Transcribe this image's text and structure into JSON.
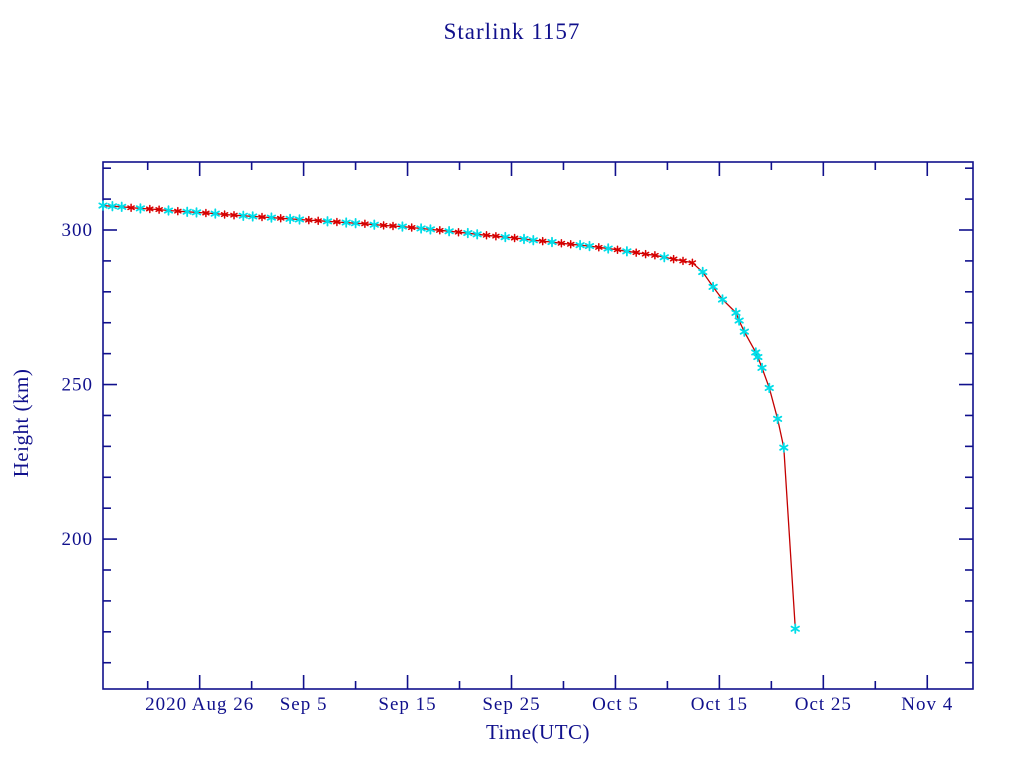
{
  "page": {
    "background": "#ffffff"
  },
  "chart_data": {
    "type": "line",
    "title": "Starlink 1157",
    "xlabel": "Time(UTC)",
    "ylabel": "Height (km)",
    "grid": false,
    "legend": null,
    "colors": {
      "frame": "#10108c",
      "text": "#10108c",
      "line": "#c40000",
      "marker_cyan": "#00dde8",
      "marker_red": "#d80000"
    },
    "x_axis": {
      "unit": "days relative to 2020 Aug 26",
      "range": [
        -9.3,
        74.4
      ],
      "major_ticks": [
        {
          "pos": 0,
          "label": "2020 Aug 26"
        },
        {
          "pos": 10,
          "label": "Sep 5"
        },
        {
          "pos": 20,
          "label": "Sep 15"
        },
        {
          "pos": 30,
          "label": "Sep 25"
        },
        {
          "pos": 40,
          "label": "Oct 5"
        },
        {
          "pos": 50,
          "label": "Oct 15"
        },
        {
          "pos": 60,
          "label": "Oct 25"
        },
        {
          "pos": 70,
          "label": "Nov 4"
        }
      ],
      "minor_tick_positions": [
        -5,
        5,
        15,
        25,
        35,
        45,
        55,
        65
      ]
    },
    "y_axis": {
      "unit": "km",
      "range": [
        151.5,
        322
      ],
      "major_ticks": [
        {
          "pos": 200,
          "label": "200"
        },
        {
          "pos": 250,
          "label": "250"
        },
        {
          "pos": 300,
          "label": "300"
        }
      ],
      "minor_tick_positions": [
        160,
        170,
        180,
        190,
        210,
        220,
        230,
        240,
        260,
        270,
        280,
        290,
        310,
        320
      ]
    },
    "series": [
      {
        "name": "Starlink 1157 height",
        "marker": "asterisk",
        "points": [
          [
            -9.3,
            307.9,
            "c"
          ],
          [
            -8.4,
            307.7,
            "c"
          ],
          [
            -7.5,
            307.5,
            "c"
          ],
          [
            -6.6,
            307.2,
            "r"
          ],
          [
            -5.7,
            307.0,
            "c"
          ],
          [
            -4.8,
            306.8,
            "r"
          ],
          [
            -3.9,
            306.6,
            "r"
          ],
          [
            -3.0,
            306.3,
            "c"
          ],
          [
            -2.1,
            306.1,
            "r"
          ],
          [
            -1.2,
            305.9,
            "c"
          ],
          [
            -0.3,
            305.7,
            "c"
          ],
          [
            0.6,
            305.5,
            "r"
          ],
          [
            1.5,
            305.3,
            "c"
          ],
          [
            2.4,
            305.0,
            "r"
          ],
          [
            3.3,
            304.8,
            "r"
          ],
          [
            4.2,
            304.6,
            "c"
          ],
          [
            5.1,
            304.4,
            "c"
          ],
          [
            6.0,
            304.2,
            "r"
          ],
          [
            6.9,
            304.0,
            "c"
          ],
          [
            7.8,
            303.8,
            "r"
          ],
          [
            8.7,
            303.6,
            "c"
          ],
          [
            9.6,
            303.4,
            "c"
          ],
          [
            10.5,
            303.2,
            "r"
          ],
          [
            11.4,
            303.0,
            "r"
          ],
          [
            12.3,
            302.8,
            "c"
          ],
          [
            13.2,
            302.6,
            "r"
          ],
          [
            14.1,
            302.4,
            "c"
          ],
          [
            15.0,
            302.2,
            "c"
          ],
          [
            15.9,
            302.0,
            "r"
          ],
          [
            16.8,
            301.7,
            "c"
          ],
          [
            17.7,
            301.5,
            "r"
          ],
          [
            18.6,
            301.3,
            "r"
          ],
          [
            19.5,
            301.1,
            "c"
          ],
          [
            20.4,
            300.8,
            "r"
          ],
          [
            21.3,
            300.5,
            "c"
          ],
          [
            22.2,
            300.2,
            "c"
          ],
          [
            23.1,
            299.9,
            "r"
          ],
          [
            24.0,
            299.6,
            "c"
          ],
          [
            24.9,
            299.3,
            "r"
          ],
          [
            25.8,
            299.0,
            "c"
          ],
          [
            26.7,
            298.6,
            "c"
          ],
          [
            27.6,
            298.3,
            "r"
          ],
          [
            28.5,
            298.0,
            "r"
          ],
          [
            29.4,
            297.7,
            "c"
          ],
          [
            30.3,
            297.4,
            "r"
          ],
          [
            31.2,
            297.1,
            "c"
          ],
          [
            32.1,
            296.7,
            "c"
          ],
          [
            33.0,
            296.4,
            "r"
          ],
          [
            33.9,
            296.1,
            "c"
          ],
          [
            34.8,
            295.7,
            "r"
          ],
          [
            35.7,
            295.4,
            "r"
          ],
          [
            36.6,
            295.1,
            "c"
          ],
          [
            37.5,
            294.8,
            "c"
          ],
          [
            38.4,
            294.4,
            "r"
          ],
          [
            39.3,
            294.0,
            "c"
          ],
          [
            40.2,
            293.6,
            "r"
          ],
          [
            41.1,
            293.1,
            "c"
          ],
          [
            42.0,
            292.7,
            "r"
          ],
          [
            42.9,
            292.2,
            "r"
          ],
          [
            43.8,
            291.8,
            "r"
          ],
          [
            44.7,
            291.2,
            "c"
          ],
          [
            45.6,
            290.6,
            "r"
          ],
          [
            46.5,
            290.0,
            "r"
          ],
          [
            47.4,
            289.4,
            "r"
          ],
          [
            48.4,
            286.4,
            "c"
          ],
          [
            49.4,
            281.6,
            "c"
          ],
          [
            50.3,
            277.5,
            "c"
          ],
          [
            51.6,
            273.2,
            "c"
          ],
          [
            51.9,
            270.7,
            "c"
          ],
          [
            52.4,
            267.1,
            "c"
          ],
          [
            53.5,
            260.4,
            "c"
          ],
          [
            53.7,
            258.9,
            "c"
          ],
          [
            54.1,
            255.4,
            "c"
          ],
          [
            54.8,
            248.9,
            "c"
          ],
          [
            55.6,
            238.9,
            "c"
          ],
          [
            56.2,
            229.6,
            "c"
          ],
          [
            57.3,
            171.0,
            "c"
          ]
        ]
      }
    ]
  }
}
